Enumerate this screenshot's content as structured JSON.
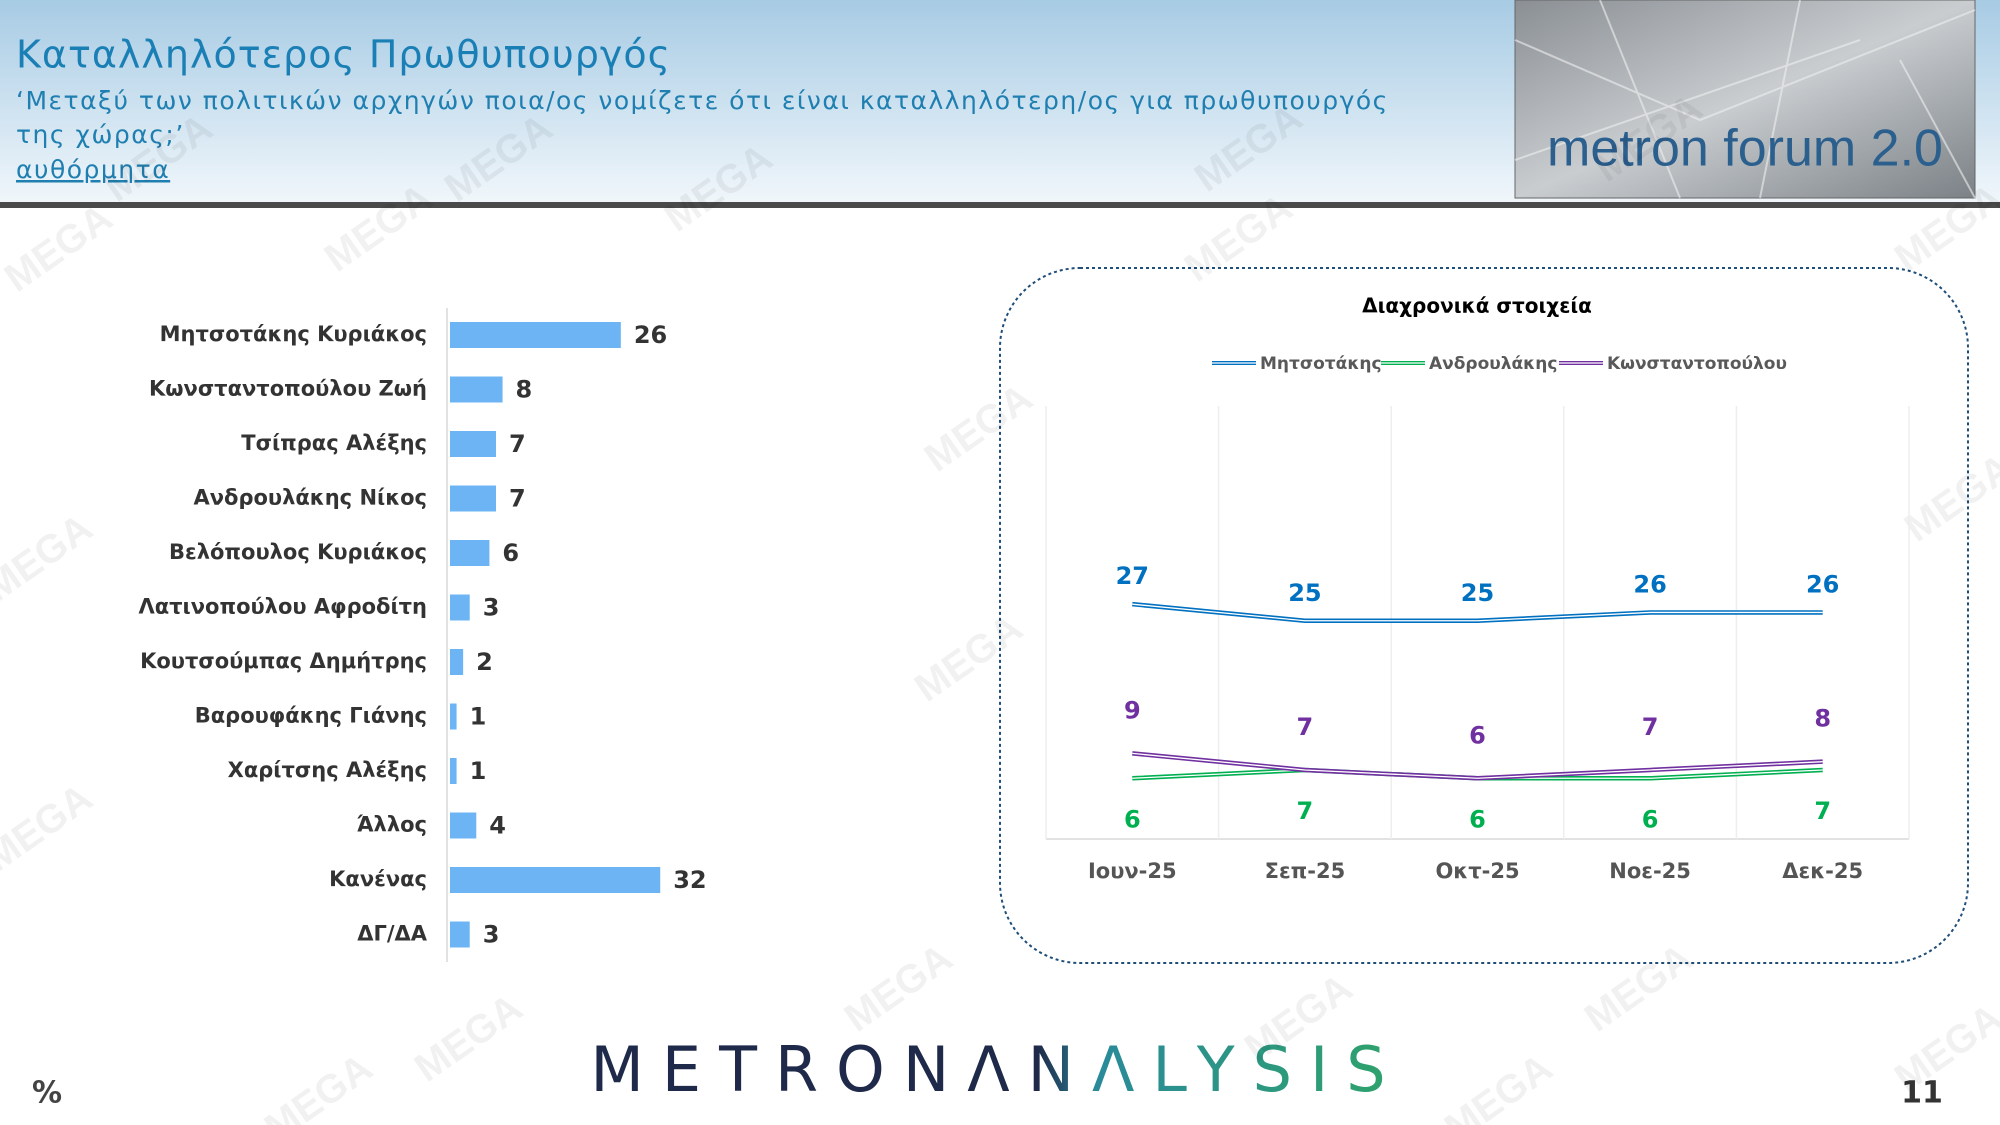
{
  "header": {
    "title": "Καταλληλότερος Πρωθυπουργός",
    "subtitle": [
      "‘Μεταξύ των πολιτικών αρχηγών ποια/ος νομίζετε ότι είναι καταλληλότερη/ος για πρωθυπουργός",
      "της χώρας;’"
    ],
    "note": "αυθόρμητα"
  },
  "logo": "metron forum 2.0",
  "watermark": "MEGA",
  "footer": {
    "brand": "METRONΛNΛLYSIS",
    "unit": "%",
    "page": "11"
  },
  "chart_data": [
    {
      "type": "bar",
      "orientation": "horizontal",
      "categories": [
        "Μητσοτάκης Κυριάκος",
        "Κωνσταντοπούλου Ζωή",
        "Τσίπρας Αλέξης",
        "Ανδρουλάκης Νίκος",
        "Βελόπουλος Κυριάκος",
        "Λατινοπούλου Αφροδίτη",
        "Κουτσούμπας Δημήτρης",
        "Βαρουφάκης Γιάνης",
        "Χαρίτσης Αλέξης",
        "Άλλος",
        "Κανένας",
        "ΔΓ/ΔΑ"
      ],
      "values": [
        26,
        8,
        7,
        7,
        6,
        3,
        2,
        1,
        1,
        4,
        32,
        3
      ],
      "color": "#6cb4f4"
    },
    {
      "type": "line",
      "title": "Διαχρονικά στοιχεία",
      "categories": [
        "Ιουν-25",
        "Σεπ-25",
        "Οκτ-25",
        "Νοε-25",
        "Δεκ-25"
      ],
      "series": [
        {
          "name": "Μητσοτάκης",
          "color": "#0070c0",
          "values": [
            27,
            25,
            25,
            26,
            26
          ]
        },
        {
          "name": "Ανδρουλάκης",
          "color": "#00b050",
          "values": [
            6,
            7,
            6,
            6,
            7
          ]
        },
        {
          "name": "Κωνσταντοπούλου",
          "color": "#7030a0",
          "values": [
            9,
            7,
            6,
            7,
            8
          ]
        }
      ]
    }
  ]
}
